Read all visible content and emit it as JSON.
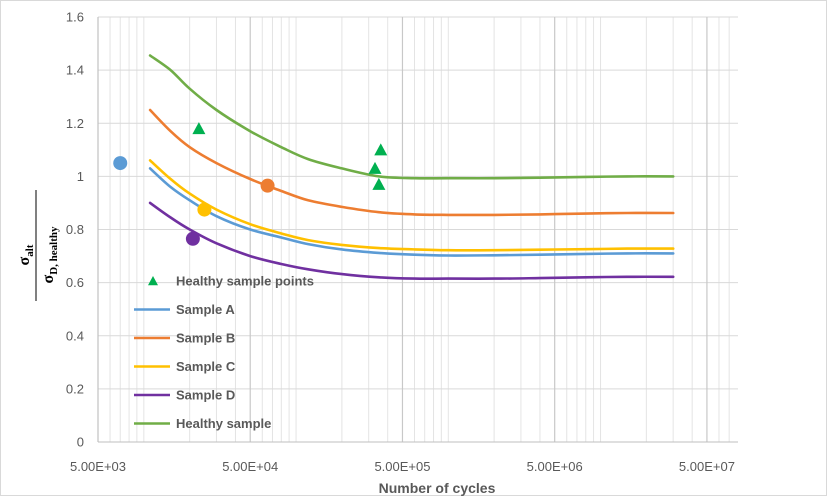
{
  "chart_data": {
    "type": "scatter",
    "title": "",
    "xlabel": "Number of cycles",
    "ylabel": {
      "numerator": "σ",
      "numerator_sub": "alt",
      "denominator": "σ",
      "denominator_sub": "D, healthy"
    },
    "x_scale": "log",
    "xlim": [
      5000,
      80000000
    ],
    "ylim": [
      0,
      1.6
    ],
    "x_ticks": [
      5000,
      50000,
      500000,
      5000000,
      50000000
    ],
    "x_tick_labels": [
      "5.00E+03",
      "5.00E+04",
      "5.00E+05",
      "5.00E+06",
      "5.00E+07"
    ],
    "y_ticks": [
      0,
      0.2,
      0.4,
      0.6,
      0.8,
      1,
      1.2,
      1.4,
      1.6
    ],
    "y_tick_labels": [
      "0",
      "0.2",
      "0.4",
      "0.6",
      "0.8",
      "1",
      "1.2",
      "1.4",
      "1.6"
    ],
    "grid": "major horizontal and vertical, minor vertical",
    "legend_position": "lower-left, inside plot",
    "series": [
      {
        "name": "Healthy sample points",
        "kind": "markers",
        "marker": "triangle",
        "color": "#00b050",
        "points": [
          [
            23000,
            1.18
          ],
          [
            330000,
            1.03
          ],
          [
            360000,
            1.1
          ],
          [
            350000,
            0.97
          ]
        ]
      },
      {
        "name": "Sample A",
        "kind": "line",
        "color": "#5b9bd5",
        "points": [
          [
            11000,
            1.03
          ],
          [
            15000,
            0.96
          ],
          [
            20000,
            0.91
          ],
          [
            30000,
            0.85
          ],
          [
            50000,
            0.8
          ],
          [
            80000,
            0.77
          ],
          [
            120000,
            0.745
          ],
          [
            200000,
            0.725
          ],
          [
            350000,
            0.712
          ],
          [
            600000,
            0.705
          ],
          [
            1000000,
            0.702
          ],
          [
            2000000,
            0.703
          ],
          [
            4000000,
            0.705
          ],
          [
            8000000,
            0.708
          ],
          [
            15000000,
            0.71
          ],
          [
            30000000,
            0.71
          ]
        ],
        "marker_point": [
          7000,
          1.05
        ]
      },
      {
        "name": "Sample B",
        "kind": "line",
        "color": "#ed7d31",
        "points": [
          [
            11000,
            1.25
          ],
          [
            15000,
            1.17
          ],
          [
            20000,
            1.11
          ],
          [
            30000,
            1.05
          ],
          [
            50000,
            0.99
          ],
          [
            80000,
            0.945
          ],
          [
            120000,
            0.91
          ],
          [
            200000,
            0.885
          ],
          [
            350000,
            0.865
          ],
          [
            600000,
            0.857
          ],
          [
            1000000,
            0.855
          ],
          [
            2000000,
            0.855
          ],
          [
            4000000,
            0.857
          ],
          [
            8000000,
            0.86
          ],
          [
            15000000,
            0.862
          ],
          [
            30000000,
            0.862
          ]
        ],
        "marker_point": [
          65000,
          0.965
        ]
      },
      {
        "name": "Sample C",
        "kind": "line",
        "color": "#ffc000",
        "points": [
          [
            11000,
            1.06
          ],
          [
            15000,
            0.99
          ],
          [
            20000,
            0.935
          ],
          [
            30000,
            0.875
          ],
          [
            50000,
            0.82
          ],
          [
            80000,
            0.785
          ],
          [
            120000,
            0.76
          ],
          [
            200000,
            0.742
          ],
          [
            350000,
            0.73
          ],
          [
            600000,
            0.725
          ],
          [
            1000000,
            0.722
          ],
          [
            2000000,
            0.722
          ],
          [
            4000000,
            0.724
          ],
          [
            8000000,
            0.726
          ],
          [
            15000000,
            0.728
          ],
          [
            30000000,
            0.728
          ]
        ],
        "marker_point": [
          25000,
          0.875
        ]
      },
      {
        "name": "Sample D",
        "kind": "line",
        "color": "#7030a0",
        "points": [
          [
            11000,
            0.9
          ],
          [
            15000,
            0.845
          ],
          [
            20000,
            0.8
          ],
          [
            30000,
            0.748
          ],
          [
            50000,
            0.7
          ],
          [
            80000,
            0.67
          ],
          [
            120000,
            0.65
          ],
          [
            200000,
            0.632
          ],
          [
            350000,
            0.62
          ],
          [
            600000,
            0.615
          ],
          [
            1000000,
            0.615
          ],
          [
            2000000,
            0.615
          ],
          [
            4000000,
            0.617
          ],
          [
            8000000,
            0.62
          ],
          [
            15000000,
            0.622
          ],
          [
            30000000,
            0.622
          ]
        ],
        "marker_point": [
          21000,
          0.765
        ]
      },
      {
        "name": "Healthy sample",
        "kind": "line",
        "color": "#70ad47",
        "points": [
          [
            11000,
            1.455
          ],
          [
            15000,
            1.4
          ],
          [
            20000,
            1.33
          ],
          [
            30000,
            1.25
          ],
          [
            50000,
            1.17
          ],
          [
            80000,
            1.11
          ],
          [
            120000,
            1.065
          ],
          [
            200000,
            1.03
          ],
          [
            350000,
            1.0
          ],
          [
            600000,
            0.993
          ],
          [
            1000000,
            0.993
          ],
          [
            2000000,
            0.993
          ],
          [
            4000000,
            0.995
          ],
          [
            8000000,
            0.998
          ],
          [
            15000000,
            1.0
          ],
          [
            30000000,
            1.0
          ]
        ]
      }
    ]
  }
}
